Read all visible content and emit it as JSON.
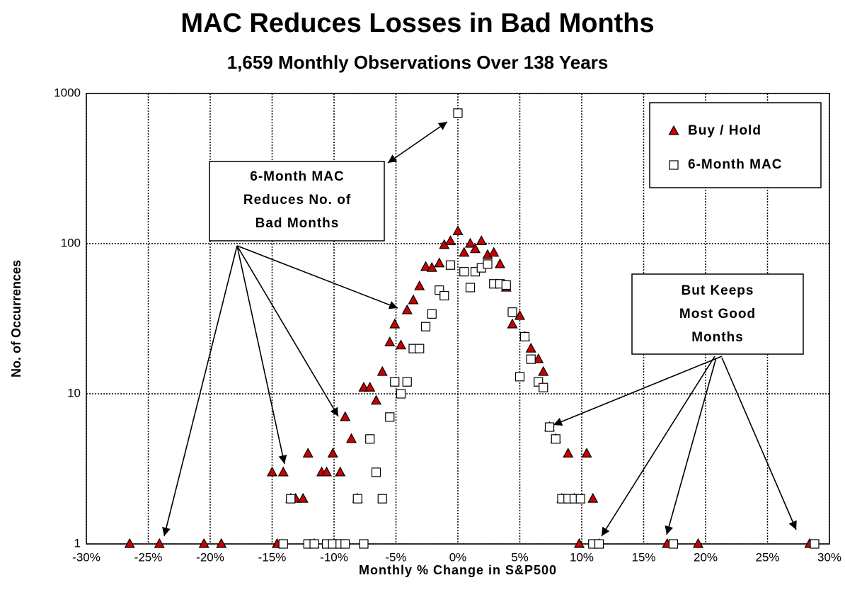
{
  "chart_data": {
    "type": "scatter",
    "title": "MAC Reduces Losses in Bad Months",
    "subtitle": "1,659 Monthly Observations Over 138 Years",
    "x_label": "Monthly % Change in S&P500",
    "y_label": "No. of Occurrences",
    "xlim": [
      -30,
      30
    ],
    "ylim": [
      1,
      1000
    ],
    "log_y": true,
    "grid": true,
    "legend": "upper right",
    "xticks": [
      {
        "value": -30,
        "label": "-30%"
      },
      {
        "value": -25,
        "label": "-25%"
      },
      {
        "value": -20,
        "label": "-20%"
      },
      {
        "value": -15,
        "label": "-15%"
      },
      {
        "value": -10,
        "label": "-10%"
      },
      {
        "value": -5,
        "label": "-5%"
      },
      {
        "value": 0,
        "label": "0%"
      },
      {
        "value": 5,
        "label": "5%"
      },
      {
        "value": 10,
        "label": "10%"
      },
      {
        "value": 15,
        "label": "15%"
      },
      {
        "value": 20,
        "label": "20%"
      },
      {
        "value": 25,
        "label": "25%"
      },
      {
        "value": 30,
        "label": "30%"
      }
    ],
    "yticks": [
      1,
      10,
      100,
      1000
    ],
    "series": [
      {
        "name": "Buy / Hold",
        "color": "#cc0000",
        "marker": "triangle",
        "x": [
          -26.5,
          -24.1,
          -20.5,
          -19.1,
          -15.0,
          -14.6,
          -14.1,
          -13.5,
          -13.1,
          -12.5,
          -12.1,
          -11.6,
          -11.0,
          -10.6,
          -10.1,
          -9.5,
          -9.1,
          -8.6,
          -8.1,
          -7.6,
          -7.1,
          -6.6,
          -6.1,
          -5.5,
          -5.1,
          -4.6,
          -4.1,
          -3.6,
          -3.1,
          -2.6,
          -2.1,
          -1.5,
          -1.1,
          -0.6,
          0,
          0.5,
          1.0,
          1.4,
          1.9,
          2.4,
          2.9,
          3.4,
          3.9,
          4.4,
          5.0,
          5.4,
          5.9,
          6.5,
          6.9,
          7.4,
          7.9,
          8.4,
          8.9,
          9.4,
          9.8,
          10.4,
          10.9,
          11.4,
          16.9,
          19.4,
          28.4
        ],
        "values": [
          1,
          1,
          1,
          1,
          3,
          1,
          3,
          2,
          2,
          2,
          4,
          1,
          3,
          3,
          4,
          3,
          7,
          5,
          2,
          11,
          11,
          9,
          14,
          22,
          29,
          21,
          36,
          42,
          52,
          70,
          69,
          74,
          98,
          104,
          121,
          87,
          100,
          92,
          104,
          84,
          87,
          73,
          51,
          29,
          33,
          24,
          20,
          17,
          14,
          6,
          5,
          2,
          4,
          2,
          1,
          4,
          2,
          1,
          1,
          1,
          1
        ]
      },
      {
        "name": "6-Month MAC",
        "color": "#ffffff",
        "marker": "square",
        "x": [
          -14.1,
          -13.5,
          -12.1,
          -11.6,
          -10.6,
          -10.1,
          -9.5,
          -9.1,
          -8.1,
          -7.6,
          -7.1,
          -6.6,
          -6.1,
          -5.5,
          -5.1,
          -4.6,
          -4.1,
          -3.6,
          -3.1,
          -2.6,
          -2.1,
          -1.5,
          -1.1,
          -0.6,
          0,
          0.5,
          1.0,
          1.4,
          1.9,
          2.4,
          2.9,
          3.4,
          3.9,
          4.4,
          5.0,
          5.4,
          5.9,
          6.5,
          6.9,
          7.4,
          7.9,
          8.4,
          8.9,
          9.4,
          9.9,
          10.9,
          11.4,
          17.4,
          28.8
        ],
        "values": [
          1,
          2,
          1,
          1,
          1,
          1,
          1,
          1,
          2,
          1,
          5,
          3,
          2,
          7,
          12,
          10,
          12,
          20,
          20,
          28,
          34,
          49,
          45,
          72,
          740,
          65,
          51,
          65,
          69,
          73,
          54,
          54,
          53,
          35,
          13,
          24,
          17,
          12,
          11,
          6,
          5,
          2,
          2,
          2,
          2,
          1,
          1,
          1,
          1
        ]
      }
    ],
    "annotations": [
      {
        "lines": [
          "6-Month MAC",
          "Reduces No. of",
          "Bad Months"
        ]
      },
      {
        "lines": [
          "But Keeps",
          "Most Good",
          "Months"
        ]
      }
    ]
  }
}
